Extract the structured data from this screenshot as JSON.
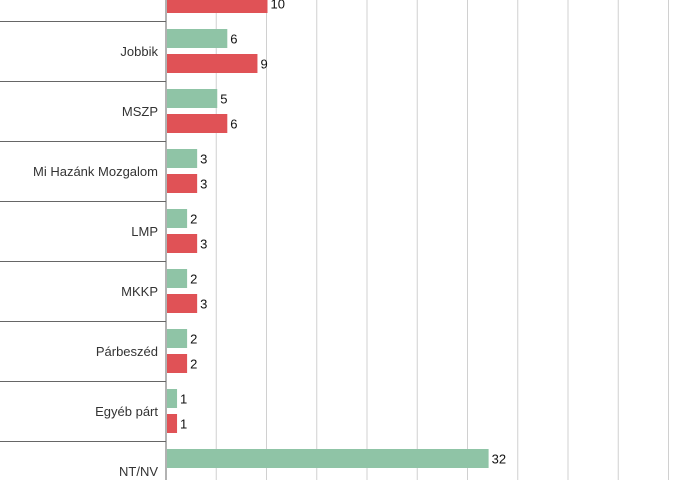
{
  "colors": {
    "series_a": "#8fc4a6",
    "series_b": "#e05256",
    "grid": "#d0d0d0",
    "separator": "#666666"
  },
  "chart_data": {
    "type": "bar",
    "orientation": "horizontal",
    "categories": [
      "",
      "Jobbik",
      "MSZP",
      "Mi Hazánk Mozgalom",
      "LMP",
      "MKKP",
      "Párbeszéd",
      "Egyéb párt",
      "NT/NV"
    ],
    "series": [
      {
        "values": [
          null,
          6,
          5,
          3,
          2,
          2,
          2,
          1,
          32
        ]
      },
      {
        "values": [
          10,
          9,
          6,
          3,
          3,
          3,
          2,
          1,
          null
        ]
      }
    ],
    "value_labels": true,
    "gridlines": "vertical",
    "legend": "none"
  }
}
